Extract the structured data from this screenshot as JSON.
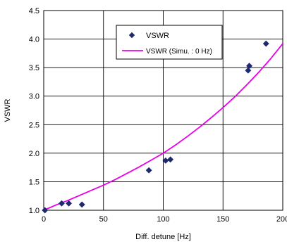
{
  "chart_data": {
    "type": "scatter",
    "xlabel": "Diff. detune [Hz]",
    "ylabel": "VSWR",
    "xlim": [
      0,
      200
    ],
    "ylim": [
      1.0,
      4.5
    ],
    "x_ticks": [
      0,
      50,
      100,
      150,
      200
    ],
    "x_tick_labels": [
      "0",
      "50",
      "100",
      "150",
      "200"
    ],
    "y_ticks": [
      1.0,
      1.5,
      2.0,
      2.5,
      3.0,
      3.5,
      4.0,
      4.5
    ],
    "y_tick_labels": [
      "1.0",
      "1.5",
      "2.0",
      "2.5",
      "3.0",
      "3.5",
      "4.0",
      "4.5"
    ],
    "grid": true,
    "legend_position": "top-center",
    "series": [
      {
        "name": "VSWR",
        "kind": "markers",
        "marker": "diamond",
        "color": "#1f2a6e",
        "x": [
          1,
          15,
          21,
          32,
          88,
          102,
          106,
          171,
          172,
          186
        ],
        "y": [
          1.0,
          1.12,
          1.12,
          1.1,
          1.7,
          1.87,
          1.89,
          3.45,
          3.53,
          3.92
        ]
      },
      {
        "name": "VSWR (Simu. : 0 Hz)",
        "kind": "line",
        "color": "#e800e8",
        "x": [
          0,
          10,
          20,
          30,
          40,
          50,
          60,
          70,
          80,
          90,
          100,
          110,
          120,
          130,
          140,
          150,
          160,
          170,
          180,
          190,
          200
        ],
        "y": [
          1.0,
          1.09,
          1.17,
          1.26,
          1.35,
          1.44,
          1.54,
          1.65,
          1.76,
          1.88,
          2.0,
          2.14,
          2.29,
          2.45,
          2.62,
          2.8,
          2.99,
          3.2,
          3.42,
          3.66,
          3.92
        ]
      }
    ]
  }
}
